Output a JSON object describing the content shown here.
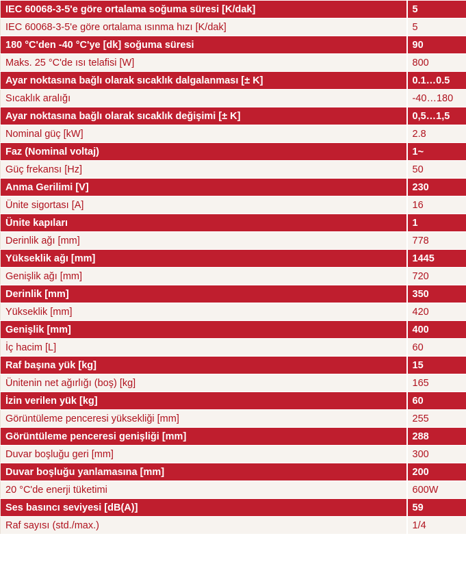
{
  "specs": [
    {
      "label": "IEC 60068-3-5'e göre ortalama soğuma süresi [K/dak]",
      "value": "5"
    },
    {
      "label": "IEC 60068-3-5'e göre ortalama ısınma hızı [K/dak]",
      "value": "5"
    },
    {
      "label": "180 °C'den -40 °C'ye [dk] soğuma süresi",
      "value": "90"
    },
    {
      "label": "Maks. 25 °C'de ısı telafisi [W]",
      "value": "800"
    },
    {
      "label": "Ayar noktasına bağlı olarak sıcaklık dalgalanması [± K]",
      "value": "0.1…0.5"
    },
    {
      "label": "Sıcaklık aralığı",
      "value": "-40…180"
    },
    {
      "label": "Ayar noktasına bağlı olarak sıcaklık değişimi [± K]",
      "value": "0,5…1,5"
    },
    {
      "label": "Nominal güç [kW]",
      "value": "2.8"
    },
    {
      "label": "Faz (Nominal voltaj)",
      "value": "1~"
    },
    {
      "label": "Güç frekansı [Hz]",
      "value": "50"
    },
    {
      "label": "Anma Gerilimi [V]",
      "value": "230"
    },
    {
      "label": "Ünite sigortası [A]",
      "value": "16"
    },
    {
      "label": "Ünite kapıları",
      "value": "1"
    },
    {
      "label": "Derinlik ağı [mm]",
      "value": "778"
    },
    {
      "label": "Yükseklik ağı [mm]",
      "value": "1445"
    },
    {
      "label": "Genişlik ağı [mm]",
      "value": "720"
    },
    {
      "label": "Derinlik [mm]",
      "value": "350"
    },
    {
      "label": "Yükseklik [mm]",
      "value": "420"
    },
    {
      "label": "Genişlik [mm]",
      "value": "400"
    },
    {
      "label": "İç hacim [L]",
      "value": "60"
    },
    {
      "label": "Raf başına yük [kg]",
      "value": "15"
    },
    {
      "label": "Ünitenin net ağırlığı (boş) [kg]",
      "value": "165"
    },
    {
      "label": "İzin verilen yük [kg]",
      "value": "60"
    },
    {
      "label": "Görüntüleme penceresi yüksekliği [mm]",
      "value": "255"
    },
    {
      "label": "Görüntüleme penceresi genişliği [mm]",
      "value": "288"
    },
    {
      "label": "Duvar boşluğu geri [mm]",
      "value": "300"
    },
    {
      "label": "Duvar boşluğu yanlamasına [mm]",
      "value": "200"
    },
    {
      "label": "20 °C'de enerji tüketimi",
      "value": "600W"
    },
    {
      "label": "Ses basıncı seviyesi [dB(A)]",
      "value": "59"
    },
    {
      "label": "Raf sayısı (std./max.)",
      "value": "1/4"
    }
  ]
}
